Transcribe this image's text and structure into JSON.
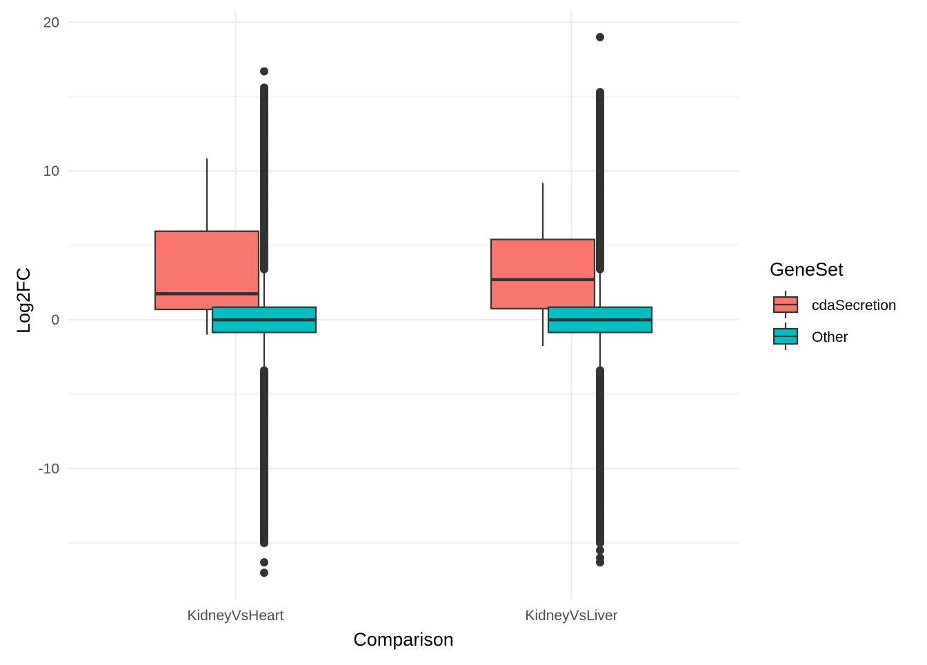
{
  "chart_data": {
    "type": "boxplot",
    "xlabel": "Comparison",
    "ylabel": "Log2FC",
    "categories": [
      "KidneyVsHeart",
      "KidneyVsLiver"
    ],
    "ylim": [
      -18.8,
      20.8
    ],
    "y_ticks": [
      -10,
      0,
      10,
      20
    ],
    "y_minor_ticks": [
      -15,
      -5,
      5,
      15
    ],
    "grid": true,
    "legend": {
      "title": "GeneSet",
      "position": "right",
      "entries": [
        {
          "name": "cdaSecretion",
          "color": "#F8766D"
        },
        {
          "name": "Other",
          "color": "#00BFC4"
        }
      ]
    },
    "series": [
      {
        "name": "cdaSecretion",
        "color": "#F8766D",
        "boxes": [
          {
            "category": "KidneyVsHeart",
            "whisker_low": -1.0,
            "q1": 0.7,
            "median": 1.75,
            "q3": 5.95,
            "whisker_high": 10.85,
            "outliers": []
          },
          {
            "category": "KidneyVsLiver",
            "whisker_low": -1.75,
            "q1": 0.75,
            "median": 2.7,
            "q3": 5.4,
            "whisker_high": 9.2,
            "outliers": []
          }
        ]
      },
      {
        "name": "Other",
        "color": "#00BFC4",
        "boxes": [
          {
            "category": "KidneyVsHeart",
            "whisker_low": -3.4,
            "q1": -0.85,
            "median": 0.0,
            "q3": 0.85,
            "whisker_high": 3.4,
            "outlier_ranges": [
              [
                3.4,
                15.6
              ],
              [
                -15.0,
                -3.4
              ]
            ],
            "outliers": [
              16.7,
              -16.3,
              -17.0
            ]
          },
          {
            "category": "KidneyVsLiver",
            "whisker_low": -3.4,
            "q1": -0.85,
            "median": 0.0,
            "q3": 0.85,
            "whisker_high": 3.4,
            "outlier_ranges": [
              [
                3.4,
                15.3
              ],
              [
                -15.0,
                -3.4
              ]
            ],
            "outliers": [
              19.0,
              -15.5,
              -16.0,
              -16.3
            ]
          }
        ]
      }
    ]
  }
}
